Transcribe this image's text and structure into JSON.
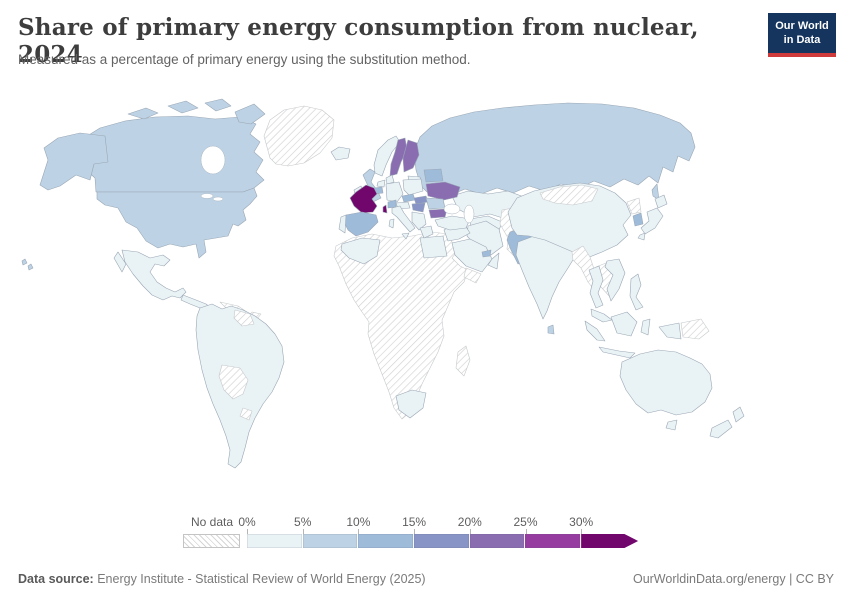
{
  "header": {
    "title": "Share of primary energy consumption from nuclear, 2024",
    "subtitle": "Measured as a percentage of primary energy using the substitution method.",
    "logo": {
      "line1": "Our World",
      "line2": "in Data"
    }
  },
  "legend": {
    "no_data_label": "No data",
    "ticks": [
      "0%",
      "5%",
      "10%",
      "15%",
      "20%",
      "25%",
      "30%"
    ]
  },
  "footer": {
    "source_label": "Data source:",
    "source_text": " Energy Institute - Statistical Review of World Energy (2025)",
    "link_text": "OurWorldinData.org/energy",
    "divider": " | ",
    "license": "CC BY"
  },
  "chart_data": {
    "type": "choropleth_map",
    "title": "Share of primary energy consumption from nuclear, 2024",
    "unit": "% of primary energy (substitution method)",
    "legend_position": "bottom",
    "color_scale": {
      "bins": [
        {
          "range": "0-5%",
          "color": "#e9f2f4"
        },
        {
          "range": "5-10%",
          "color": "#bdd3e5"
        },
        {
          "range": "10-15%",
          "color": "#9fbbda"
        },
        {
          "range": "15-20%",
          "color": "#8894c6"
        },
        {
          "range": "20-25%",
          "color": "#8a6db1"
        },
        {
          "range": "25-30%",
          "color": "#963ca1"
        },
        {
          "range": ">30%",
          "color": "#71076c"
        }
      ],
      "no_data": {
        "label": "No data",
        "fill": "hatched-diagonal-gray"
      }
    },
    "regions": {
      "canada": {
        "name": "Canada",
        "range": "5-10%",
        "bin": 1
      },
      "usa": {
        "name": "United States",
        "range": "5-10%",
        "bin": 1
      },
      "greenland": {
        "name": "Greenland",
        "range": "No data",
        "bin": -1
      },
      "mexico": {
        "name": "Mexico",
        "range": "0-5%",
        "bin": 0
      },
      "central-america": {
        "name": "Central America",
        "range": "0-5%",
        "bin": 0
      },
      "caribbean": {
        "name": "Cuba & Caribbean",
        "range": "No data",
        "bin": -1
      },
      "south-america": {
        "name": "South America (Brazil, Argentina, Colombia, Peru, Chile, Venezuela)",
        "range": "0-5%",
        "bin": 0
      },
      "guyanas": {
        "name": "Guyana & Suriname",
        "range": "No data",
        "bin": -1
      },
      "bolivia-paraguay": {
        "name": "Bolivia & Paraguay",
        "range": "No data",
        "bin": -1
      },
      "uruguay": {
        "name": "Uruguay",
        "range": "No data",
        "bin": -1
      },
      "iceland": {
        "name": "Iceland",
        "range": "0-5%",
        "bin": 0
      },
      "uk": {
        "name": "United Kingdom",
        "range": "5-10%",
        "bin": 1
      },
      "ireland": {
        "name": "Ireland",
        "range": "0-5%",
        "bin": 0
      },
      "norway": {
        "name": "Norway",
        "range": "0-5%",
        "bin": 0
      },
      "sweden": {
        "name": "Sweden",
        "range": "20-25%",
        "bin": 4
      },
      "finland": {
        "name": "Finland",
        "range": "20-25%",
        "bin": 4
      },
      "baltics": {
        "name": "Baltic states",
        "range": "0-5%",
        "bin": 0
      },
      "denmark": {
        "name": "Denmark",
        "range": "0-5%",
        "bin": 0
      },
      "netherlands": {
        "name": "Netherlands",
        "range": "0-5%",
        "bin": 0
      },
      "belgium": {
        "name": "Belgium",
        "range": "10-15%",
        "bin": 2
      },
      "germany": {
        "name": "Germany",
        "range": "0-5%",
        "bin": 0
      },
      "poland": {
        "name": "Poland",
        "range": "0-5%",
        "bin": 0
      },
      "czechia": {
        "name": "Czechia",
        "range": "10-15%",
        "bin": 2
      },
      "slovakia": {
        "name": "Slovakia",
        "range": "15-20%",
        "bin": 3
      },
      "austria": {
        "name": "Austria",
        "range": "0-5%",
        "bin": 0
      },
      "switzerland": {
        "name": "Switzerland",
        "range": "10-15%",
        "bin": 2
      },
      "hungary": {
        "name": "Hungary",
        "range": "15-20%",
        "bin": 3
      },
      "france": {
        "name": "France",
        "range": ">30%",
        "bin": 6
      },
      "spain": {
        "name": "Spain",
        "range": "10-15%",
        "bin": 2
      },
      "portugal": {
        "name": "Portugal",
        "range": "0-5%",
        "bin": 0
      },
      "italy": {
        "name": "Italy",
        "range": "0-5%",
        "bin": 0
      },
      "balkans": {
        "name": "Western Balkans",
        "range": "0-5%",
        "bin": 0
      },
      "greece": {
        "name": "Greece",
        "range": "0-5%",
        "bin": 0
      },
      "romania": {
        "name": "Romania",
        "range": "5-10%",
        "bin": 1
      },
      "bulgaria": {
        "name": "Bulgaria",
        "range": "20-25%",
        "bin": 4
      },
      "belarus": {
        "name": "Belarus",
        "range": "10-15%",
        "bin": 2
      },
      "ukraine": {
        "name": "Ukraine",
        "range": "20-25%",
        "bin": 4
      },
      "turkey": {
        "name": "Turkey",
        "range": "0-5%",
        "bin": 0
      },
      "russia": {
        "name": "Russia",
        "range": "5-10%",
        "bin": 1
      },
      "kazakhstan": {
        "name": "Kazakhstan",
        "range": "0-5%",
        "bin": 0
      },
      "central-asia": {
        "name": "Uzbekistan",
        "range": "0-5%",
        "bin": 0
      },
      "turkmenistan-tajikistan": {
        "name": "Turkmenistan & Tajikistan",
        "range": "No data",
        "bin": -1
      },
      "afghanistan": {
        "name": "Afghanistan",
        "range": "No data",
        "bin": -1
      },
      "iran": {
        "name": "Iran",
        "range": "0-5%",
        "bin": 0
      },
      "iraq-levant": {
        "name": "Iraq & Levant",
        "range": "0-5%",
        "bin": 0
      },
      "saudi-arabia": {
        "name": "Saudi Arabia",
        "range": "0-5%",
        "bin": 0
      },
      "yemen": {
        "name": "Yemen",
        "range": "No data",
        "bin": -1
      },
      "oman": {
        "name": "Oman",
        "range": "0-5%",
        "bin": 0
      },
      "uae": {
        "name": "United Arab Emirates",
        "range": "10-15%",
        "bin": 2
      },
      "pakistan": {
        "name": "Pakistan",
        "range": "10-15%",
        "bin": 2
      },
      "india": {
        "name": "India",
        "range": "0-5%",
        "bin": 0
      },
      "sri-lanka": {
        "name": "Sri Lanka",
        "range": "5-10%",
        "bin": 1
      },
      "china": {
        "name": "China",
        "range": "0-5%",
        "bin": 0
      },
      "mongolia": {
        "name": "Mongolia",
        "range": "No data",
        "bin": -1
      },
      "myanmar": {
        "name": "Myanmar",
        "range": "No data",
        "bin": -1
      },
      "laos-cambodia": {
        "name": "Laos & Cambodia",
        "range": "No data",
        "bin": -1
      },
      "thailand": {
        "name": "Thailand",
        "range": "0-5%",
        "bin": 0
      },
      "vietnam": {
        "name": "Vietnam",
        "range": "0-5%",
        "bin": 0
      },
      "malaysia": {
        "name": "Malaysia",
        "range": "0-5%",
        "bin": 0
      },
      "indonesia": {
        "name": "Indonesia",
        "range": "0-5%",
        "bin": 0
      },
      "philippines": {
        "name": "Philippines",
        "range": "0-5%",
        "bin": 0
      },
      "papua-new-guinea": {
        "name": "Papua New Guinea",
        "range": "No data",
        "bin": -1
      },
      "japan": {
        "name": "Japan",
        "range": "0-5%",
        "bin": 0
      },
      "south-korea": {
        "name": "South Korea",
        "range": "10-15%",
        "bin": 2
      },
      "north-korea": {
        "name": "North Korea",
        "range": "No data",
        "bin": -1
      },
      "africa": {
        "name": "Sub-Saharan Africa (most countries)",
        "range": "No data",
        "bin": -1
      },
      "algeria": {
        "name": "Algeria",
        "range": "0-5%",
        "bin": 0
      },
      "egypt": {
        "name": "Egypt",
        "range": "0-5%",
        "bin": 0
      },
      "south-africa": {
        "name": "South Africa",
        "range": "0-5%",
        "bin": 0
      },
      "madagascar": {
        "name": "Madagascar",
        "range": "No data",
        "bin": -1
      },
      "australia": {
        "name": "Australia",
        "range": "0-5%",
        "bin": 0
      },
      "new-zealand": {
        "name": "New Zealand",
        "range": "0-5%",
        "bin": 0
      }
    }
  }
}
